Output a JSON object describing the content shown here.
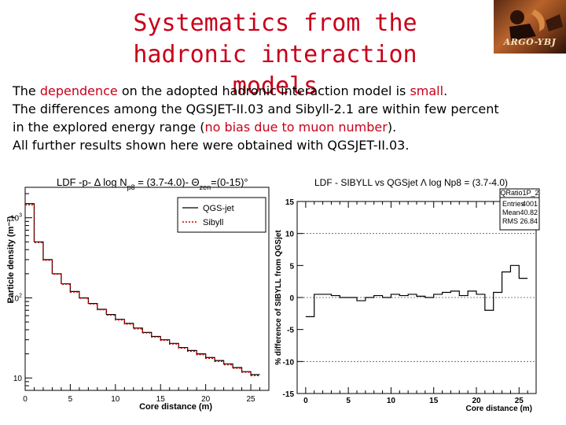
{
  "slide": {
    "title_line1": "Systematics from the",
    "title_line2": "hadronic interaction models",
    "logo_text": "ARGO-YBJ",
    "para": {
      "l1a": "The ",
      "l1b": "dependence",
      "l1c": " on the adopted hadronic interaction model is ",
      "l1d": "small",
      "l1e": ".",
      "l2": "The differences among the QGSJET-II.03 and Sibyll-2.1  are within few percent",
      "l3a": "in the explored energy range (",
      "l3b": "no bias due to muon number",
      "l3c": ").",
      "l4": "All further results shown here were obtained with QGSJET-II.03."
    }
  },
  "chart_data": [
    {
      "type": "line",
      "title_main": "LDF -p-  Δ log N",
      "title_sub1": "p8",
      "title_mid": " = (3.7-4.0)- Θ",
      "title_sub2": "zen",
      "title_end": "=(0-15)°",
      "xlabel": "Core distance (m)",
      "ylabel": "Particle density (m⁻²)",
      "y_scale": "log",
      "xlim": [
        0,
        27
      ],
      "ylim": [
        7,
        2400
      ],
      "x_ticks": [
        "0",
        "5",
        "10",
        "15",
        "20",
        "25"
      ],
      "y_ticks": [
        "10",
        "10²",
        "10³"
      ],
      "legend": [
        "QGS-jet",
        "Sibyll"
      ],
      "legend_position": "top-right",
      "colors": {
        "qgs": "#000000",
        "sibyll": "#cc0000"
      },
      "bin_edges": [
        0,
        1,
        2,
        3,
        4,
        5,
        6,
        7,
        8,
        9,
        10,
        11,
        12,
        13,
        14,
        15,
        16,
        17,
        18,
        19,
        20,
        21,
        22,
        23,
        24,
        25,
        26
      ],
      "series": [
        {
          "name": "QGS-jet",
          "values": [
            1500,
            500,
            300,
            200,
            150,
            120,
            100,
            85,
            72,
            62,
            54,
            48,
            42,
            37,
            33,
            30,
            27,
            24,
            22,
            20,
            18,
            16.5,
            15,
            13.5,
            12,
            11
          ]
        },
        {
          "name": "Sibyll",
          "values": [
            1450,
            490,
            295,
            198,
            148,
            118,
            99,
            84,
            71,
            61,
            53,
            47,
            41,
            36.5,
            32.5,
            29.5,
            26.5,
            23.5,
            21.5,
            19.5,
            17.6,
            16.1,
            14.6,
            13.2,
            11.8,
            10.7
          ]
        }
      ]
    },
    {
      "type": "line",
      "title": "LDF - SIBYLL vs QGSjet   Λ log Np8 = (3.7-4.0)",
      "xlabel": "Core distance (m)",
      "ylabel": "% difference of SIBYLL from QGSjet",
      "xlim": [
        -1,
        27
      ],
      "ylim": [
        -15,
        15
      ],
      "x_ticks": [
        "0",
        "5",
        "10",
        "15",
        "20",
        "25"
      ],
      "y_ticks": [
        "-15",
        "-10",
        "-5",
        "0",
        "5",
        "10",
        "15"
      ],
      "grid": "dashed at 0 and ±10",
      "stats_box": {
        "name": "QRatio1P_2",
        "rows": [
          [
            "Entries",
            "4001"
          ],
          [
            "Mean",
            "40.82"
          ],
          [
            "RMS",
            "26.84"
          ]
        ]
      },
      "bin_edges": [
        0,
        1,
        2,
        3,
        4,
        5,
        6,
        7,
        8,
        9,
        10,
        11,
        12,
        13,
        14,
        15,
        16,
        17,
        18,
        19,
        20,
        21,
        22,
        23,
        24,
        25,
        26
      ],
      "series": [
        {
          "name": "",
          "values": [
            -3,
            0.5,
            0.5,
            0.3,
            0,
            0,
            -0.5,
            0,
            0.3,
            0,
            0.5,
            0.3,
            0.5,
            0.2,
            0,
            0.5,
            0.8,
            1,
            0.3,
            1,
            0.5,
            -2,
            0.8,
            4,
            5,
            3
          ]
        }
      ]
    }
  ]
}
